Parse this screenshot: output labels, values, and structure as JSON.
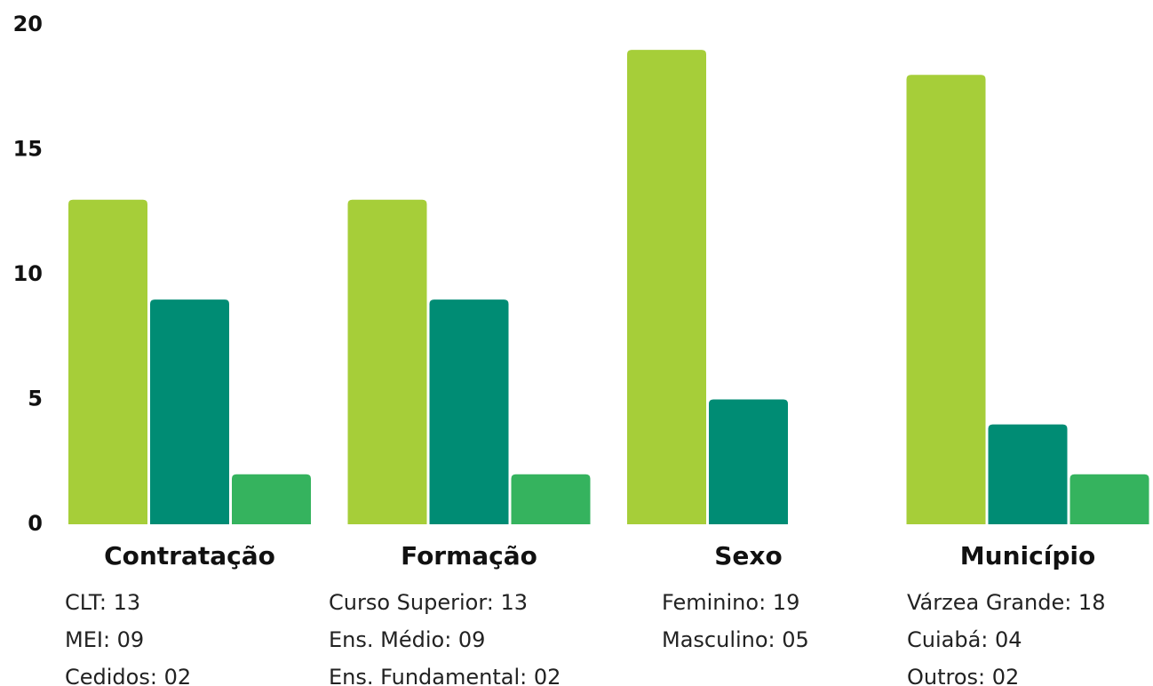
{
  "chart_data": {
    "type": "bar",
    "categories": [
      "Contratação",
      "Formação",
      "Sexo",
      "Município"
    ],
    "series": [
      {
        "color": "#a6ce39",
        "values": [
          13,
          13,
          19,
          18
        ]
      },
      {
        "color": "#008c74",
        "values": [
          9,
          9,
          5,
          4
        ]
      },
      {
        "color": "#35b35e",
        "values": [
          2,
          2,
          null,
          2
        ]
      }
    ],
    "group_labels": [
      [
        "CLT: 13",
        "MEI: 09",
        "Cedidos: 02"
      ],
      [
        "Curso Superior: 13",
        "Ens. Médio: 09",
        "Ens. Fundamental: 02"
      ],
      [
        "Feminino: 19",
        "Masculino: 05"
      ],
      [
        "Várzea Grande: 18",
        "Cuiabá: 04",
        "Outros: 02"
      ]
    ],
    "ylim": [
      0,
      20
    ],
    "yticks": [
      0,
      5,
      10,
      15,
      20
    ],
    "grid": false
  }
}
